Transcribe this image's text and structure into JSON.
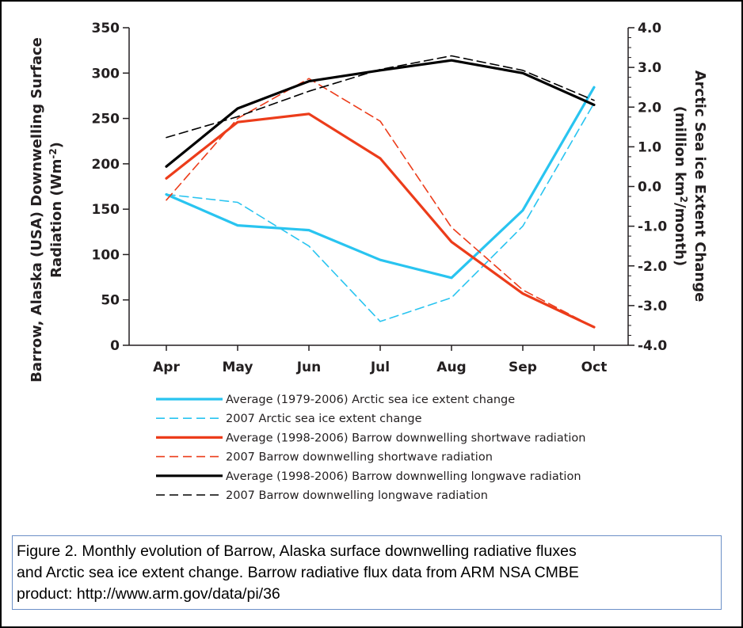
{
  "chart_data": {
    "type": "line",
    "categories": [
      "Apr",
      "May",
      "Jun",
      "Jul",
      "Aug",
      "Sep",
      "Oct"
    ],
    "left_axis": {
      "label_line1": "Barrow, Alaska (USA) Downwelling Surface",
      "label_line2": "Radiation (Wm",
      "label_sup": "-2",
      "label_end": ")",
      "ylim": [
        0,
        350
      ],
      "ticks": [
        "0",
        "50",
        "100",
        "150",
        "200",
        "250",
        "300",
        "350"
      ]
    },
    "right_axis": {
      "label_line1": "Arctic Sea ice Extent Change",
      "label_line2": "(million km",
      "label_sup": "2",
      "label_end": "/month)",
      "ylim": [
        -4.0,
        4.0
      ],
      "ticks": [
        "-4.0",
        "-3.0",
        "-2.0",
        "-1.0",
        "0.0",
        "1.0",
        "2.0",
        "3.0",
        "4.0"
      ]
    },
    "series": [
      {
        "name": "Average (1979-2006) Arctic sea ice extent change",
        "axis": "right",
        "color": "#29c4f0",
        "dash": "solid",
        "values": [
          -0.2,
          -0.98,
          -1.1,
          -1.85,
          -2.3,
          -0.6,
          2.5
        ]
      },
      {
        "name": "2007 Arctic sea ice extent change",
        "axis": "right",
        "color": "#29c4f0",
        "dash": "dashed",
        "values": [
          -0.2,
          -0.4,
          -1.5,
          -3.4,
          -2.8,
          -1.0,
          2.1
        ]
      },
      {
        "name": "Average (1998-2006) Barrow downwelling shortwave radiation",
        "axis": "left",
        "color": "#ec3c1a",
        "dash": "solid",
        "values": [
          184,
          246,
          255,
          206,
          114,
          57,
          20
        ]
      },
      {
        "name": "2007  Barrow downwelling shortwave radiation",
        "axis": "left",
        "color": "#ec3c1a",
        "dash": "dashed",
        "values": [
          160,
          250,
          294,
          247,
          130,
          61,
          20
        ]
      },
      {
        "name": "Average (1998-2006) Barrow downwelling longwave radiation",
        "axis": "left",
        "color": "#000000",
        "dash": "solid",
        "values": [
          197,
          261,
          291,
          303,
          314,
          300,
          265
        ]
      },
      {
        "name": "2007  Barrow downwelling longwave radiation",
        "axis": "left",
        "color": "#000000",
        "dash": "dashed",
        "values": [
          229,
          252,
          280,
          304,
          319,
          303,
          270
        ]
      }
    ],
    "legend_position": "bottom"
  },
  "caption": {
    "line1": "Figure 2. Monthly evolution of Barrow, Alaska surface downwelling radiative fluxes",
    "line2": "and Arctic sea ice extent change. Barrow radiative flux data from ARM NSA CMBE",
    "line3": "product: http://www.arm.gov/data/pi/36"
  }
}
